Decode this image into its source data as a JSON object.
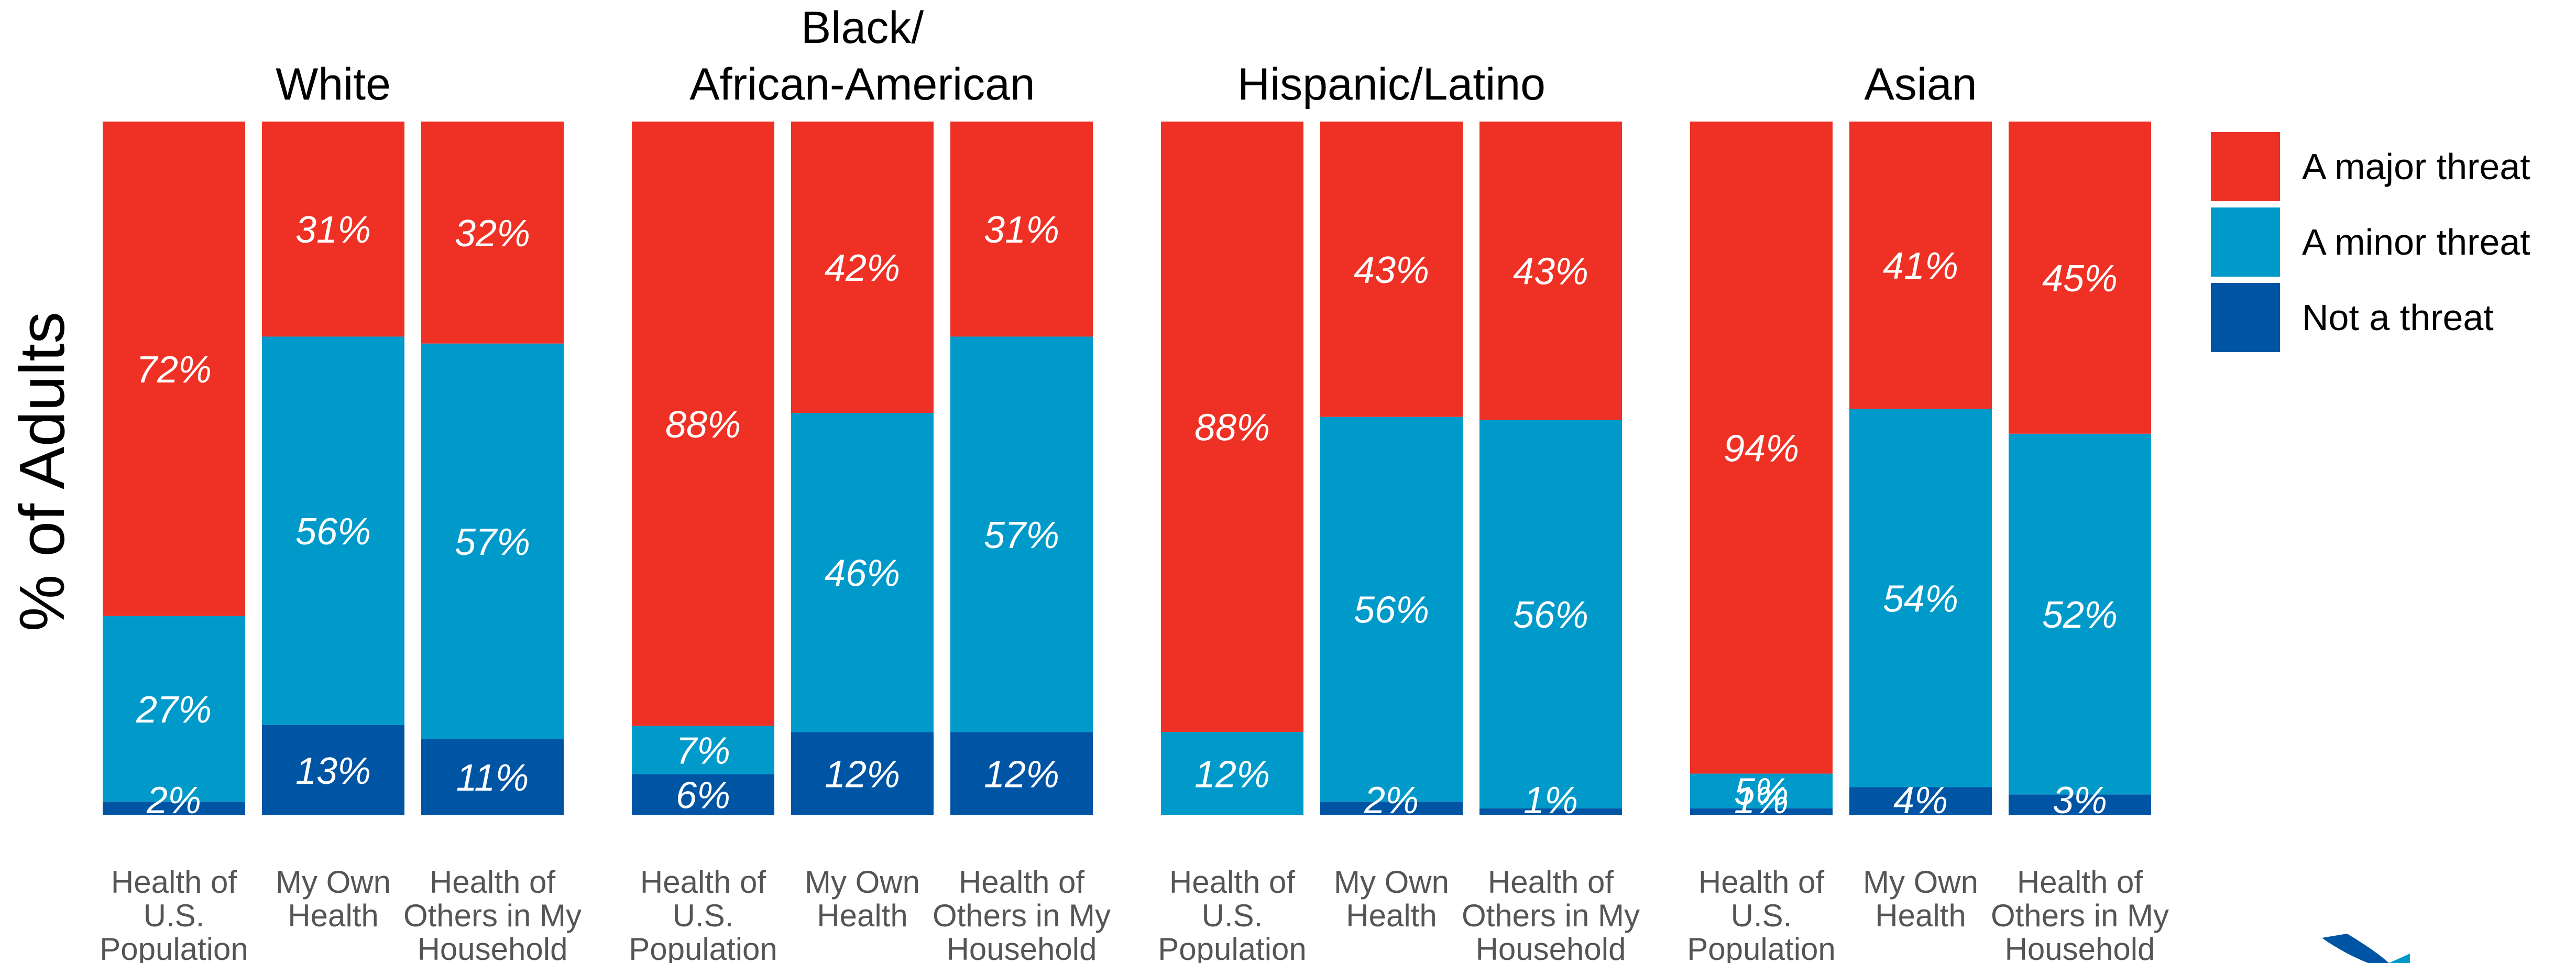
{
  "chart_data": {
    "type": "bar",
    "stacked": true,
    "normalized": true,
    "ylabel": "% of Adults",
    "legend": {
      "placement": "right",
      "entries": [
        "A major threat",
        "A minor threat",
        "Not a threat"
      ]
    },
    "colors": {
      "A major threat": "#EE3124",
      "A minor threat": "#009ACA",
      "Not a threat": "#0054A4"
    },
    "groups": [
      {
        "title": [
          "White"
        ],
        "bars": [
          {
            "category": [
              "Health of",
              "U.S.",
              "Population"
            ],
            "values": {
              "A major threat": 72,
              "A minor threat": 27,
              "Not a threat": 2
            }
          },
          {
            "category": [
              "My Own",
              "Health"
            ],
            "values": {
              "A major threat": 31,
              "A minor threat": 56,
              "Not a threat": 13
            }
          },
          {
            "category": [
              "Health of",
              "Others in My",
              "Household"
            ],
            "values": {
              "A major threat": 32,
              "A minor threat": 57,
              "Not a threat": 11
            }
          }
        ]
      },
      {
        "title": [
          "Black/",
          "African-American"
        ],
        "bars": [
          {
            "category": [
              "Health of",
              "U.S.",
              "Population"
            ],
            "values": {
              "A major threat": 88,
              "A minor threat": 7,
              "Not a threat": 6
            }
          },
          {
            "category": [
              "My Own",
              "Health"
            ],
            "values": {
              "A major threat": 42,
              "A minor threat": 46,
              "Not a threat": 12
            }
          },
          {
            "category": [
              "Health of",
              "Others in My",
              "Household"
            ],
            "values": {
              "A major threat": 31,
              "A minor threat": 57,
              "Not a threat": 12
            }
          }
        ]
      },
      {
        "title": [
          "Hispanic/Latino"
        ],
        "bars": [
          {
            "category": [
              "Health of",
              "U.S.",
              "Population"
            ],
            "values": {
              "A major threat": 88,
              "A minor threat": 12,
              "Not a threat": 0
            }
          },
          {
            "category": [
              "My Own",
              "Health"
            ],
            "values": {
              "A major threat": 43,
              "A minor threat": 56,
              "Not a threat": 2
            }
          },
          {
            "category": [
              "Health of",
              "Others in My",
              "Household"
            ],
            "values": {
              "A major threat": 43,
              "A minor threat": 56,
              "Not a threat": 1
            }
          }
        ]
      },
      {
        "title": [
          "Asian"
        ],
        "bars": [
          {
            "category": [
              "Health of",
              "U.S.",
              "Population"
            ],
            "values": {
              "A major threat": 94,
              "A minor threat": 5,
              "Not a threat": 1
            }
          },
          {
            "category": [
              "My Own",
              "Health"
            ],
            "values": {
              "A major threat": 41,
              "A minor threat": 54,
              "Not a threat": 4
            }
          },
          {
            "category": [
              "Health of",
              "Others in My",
              "Household"
            ],
            "values": {
              "A major threat": 45,
              "A minor threat": 52,
              "Not a threat": 3
            }
          }
        ]
      }
    ]
  }
}
